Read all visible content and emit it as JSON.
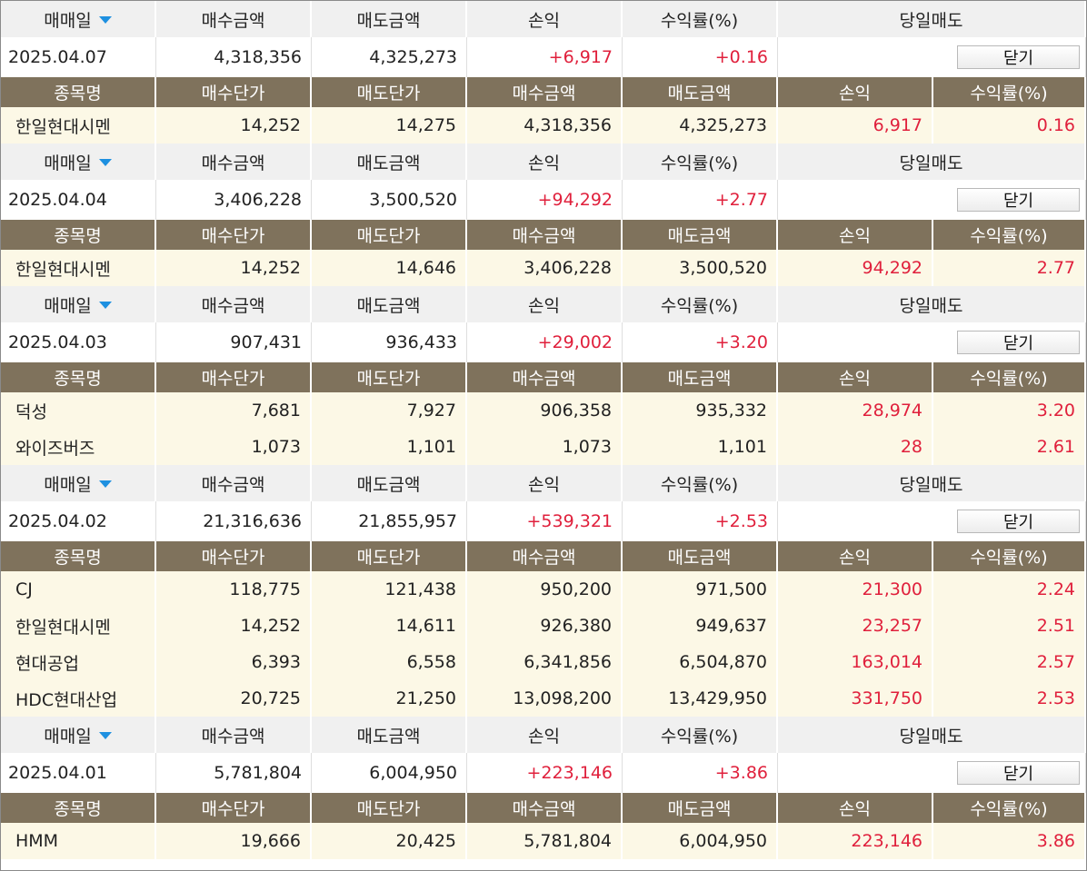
{
  "headers": {
    "date": "매매일",
    "buy_amount": "매수금액",
    "sell_amount": "매도금액",
    "pnl": "손익",
    "return": "수익률(%)",
    "same_day_sell": "당일매도",
    "close_label": "닫기"
  },
  "detail_headers": {
    "name": "종목명",
    "buy_price": "매수단가",
    "sell_price": "매도단가",
    "buy_amount": "매수금액",
    "sell_amount": "매도금액",
    "pnl": "손익",
    "return": "수익률(%)"
  },
  "groups": [
    {
      "date": "2025.04.07",
      "buy": "4,318,356",
      "sell": "4,325,273",
      "pnl": "+6,917",
      "ret": "+0.16",
      "items": [
        {
          "name": "한일현대시멘",
          "bp": "14,252",
          "sp": "14,275",
          "ba": "4,318,356",
          "sa": "4,325,273",
          "pnl": "6,917",
          "ret": "0.16"
        }
      ]
    },
    {
      "date": "2025.04.04",
      "buy": "3,406,228",
      "sell": "3,500,520",
      "pnl": "+94,292",
      "ret": "+2.77",
      "items": [
        {
          "name": "한일현대시멘",
          "bp": "14,252",
          "sp": "14,646",
          "ba": "3,406,228",
          "sa": "3,500,520",
          "pnl": "94,292",
          "ret": "2.77"
        }
      ]
    },
    {
      "date": "2025.04.03",
      "buy": "907,431",
      "sell": "936,433",
      "pnl": "+29,002",
      "ret": "+3.20",
      "items": [
        {
          "name": "덕성",
          "bp": "7,681",
          "sp": "7,927",
          "ba": "906,358",
          "sa": "935,332",
          "pnl": "28,974",
          "ret": "3.20"
        },
        {
          "name": "와이즈버즈",
          "bp": "1,073",
          "sp": "1,101",
          "ba": "1,073",
          "sa": "1,101",
          "pnl": "28",
          "ret": "2.61"
        }
      ]
    },
    {
      "date": "2025.04.02",
      "buy": "21,316,636",
      "sell": "21,855,957",
      "pnl": "+539,321",
      "ret": "+2.53",
      "items": [
        {
          "name": "CJ",
          "bp": "118,775",
          "sp": "121,438",
          "ba": "950,200",
          "sa": "971,500",
          "pnl": "21,300",
          "ret": "2.24"
        },
        {
          "name": "한일현대시멘",
          "bp": "14,252",
          "sp": "14,611",
          "ba": "926,380",
          "sa": "949,637",
          "pnl": "23,257",
          "ret": "2.51"
        },
        {
          "name": "현대공업",
          "bp": "6,393",
          "sp": "6,558",
          "ba": "6,341,856",
          "sa": "6,504,870",
          "pnl": "163,014",
          "ret": "2.57"
        },
        {
          "name": "HDC현대산업",
          "bp": "20,725",
          "sp": "21,250",
          "ba": "13,098,200",
          "sa": "13,429,950",
          "pnl": "331,750",
          "ret": "2.53"
        }
      ]
    },
    {
      "date": "2025.04.01",
      "buy": "5,781,804",
      "sell": "6,004,950",
      "pnl": "+223,146",
      "ret": "+3.86",
      "items": [
        {
          "name": "HMM",
          "bp": "19,666",
          "sp": "20,425",
          "ba": "5,781,804",
          "sa": "6,004,950",
          "pnl": "223,146",
          "ret": "3.86"
        }
      ]
    }
  ],
  "colors": {
    "header_bg": "#f0f0f0",
    "detail_header_bg": "#7f725c",
    "detail_row_bg": "#fcf8e6",
    "profit_red": "#e0203c",
    "sort_caret_blue": "#1e90e0"
  }
}
